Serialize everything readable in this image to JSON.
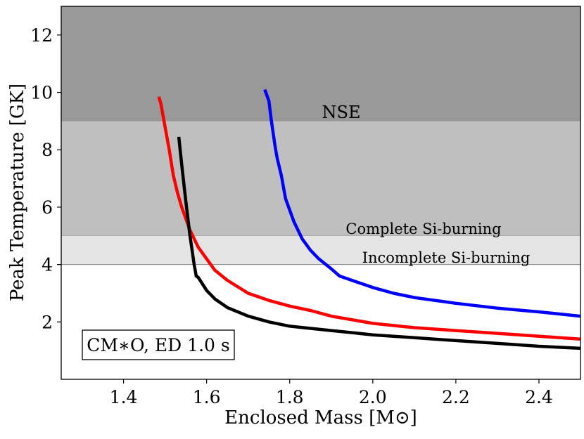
{
  "chart_data": {
    "type": "line",
    "title": "",
    "xlabel": "Enclosed Mass [M⊙]",
    "ylabel": "Peak Temperature [GK]",
    "xlim": [
      1.25,
      2.5
    ],
    "ylim": [
      0,
      13
    ],
    "xticks": [
      1.4,
      1.6,
      1.8,
      2.0,
      2.2,
      2.4
    ],
    "xtick_labels": [
      "1.4",
      "1.6",
      "1.8",
      "2.0",
      "2.2",
      "2.4"
    ],
    "yticks": [
      2,
      4,
      6,
      8,
      10,
      12
    ],
    "ytick_labels": [
      "2",
      "4",
      "6",
      "8",
      "10",
      "12"
    ],
    "grid": false,
    "bands": [
      {
        "name": "NSE",
        "label": "NSE",
        "ymin": 9,
        "ymax": 13,
        "color": "#999999"
      },
      {
        "name": "complete-si",
        "label": "Complete Si-burning",
        "ymin": 5,
        "ymax": 9,
        "color": "#bfbfbf"
      },
      {
        "name": "incomplete-si",
        "label": "Incomplete Si-burning",
        "ymin": 4,
        "ymax": 5,
        "color": "#e5e5e5"
      }
    ],
    "annotation": "CM∗O, ED 1.0 s",
    "series": [
      {
        "name": "blue",
        "color": "#0000ff",
        "x": [
          1.74,
          1.75,
          1.755,
          1.76,
          1.765,
          1.77,
          1.78,
          1.79,
          1.8,
          1.81,
          1.82,
          1.83,
          1.85,
          1.87,
          1.9,
          1.92,
          1.95,
          2.0,
          2.05,
          2.1,
          2.2,
          2.3,
          2.4,
          2.5
        ],
        "y": [
          10.1,
          9.7,
          9.1,
          8.6,
          8.1,
          7.7,
          7.1,
          6.3,
          5.9,
          5.5,
          5.2,
          4.9,
          4.5,
          4.2,
          3.85,
          3.6,
          3.45,
          3.2,
          3.0,
          2.85,
          2.65,
          2.48,
          2.35,
          2.2
        ]
      },
      {
        "name": "red",
        "color": "#ff0000",
        "x": [
          1.485,
          1.49,
          1.5,
          1.51,
          1.52,
          1.53,
          1.54,
          1.55,
          1.56,
          1.58,
          1.6,
          1.62,
          1.65,
          1.7,
          1.75,
          1.8,
          1.85,
          1.9,
          2.0,
          2.1,
          2.2,
          2.3,
          2.4,
          2.5
        ],
        "y": [
          9.85,
          9.6,
          8.8,
          8.0,
          7.1,
          6.5,
          6.0,
          5.6,
          5.2,
          4.6,
          4.2,
          3.8,
          3.45,
          3.0,
          2.75,
          2.55,
          2.4,
          2.2,
          1.95,
          1.8,
          1.7,
          1.6,
          1.5,
          1.4
        ]
      },
      {
        "name": "black",
        "color": "#000000",
        "x": [
          1.533,
          1.54,
          1.55,
          1.56,
          1.565,
          1.57,
          1.575,
          1.58,
          1.6,
          1.62,
          1.65,
          1.7,
          1.75,
          1.8,
          1.9,
          2.0,
          2.1,
          2.2,
          2.3,
          2.4,
          2.5
        ],
        "y": [
          8.45,
          7.5,
          6.2,
          5.0,
          4.5,
          4.0,
          3.6,
          3.55,
          3.1,
          2.8,
          2.5,
          2.2,
          2.0,
          1.85,
          1.7,
          1.55,
          1.45,
          1.35,
          1.25,
          1.15,
          1.08
        ]
      }
    ]
  }
}
